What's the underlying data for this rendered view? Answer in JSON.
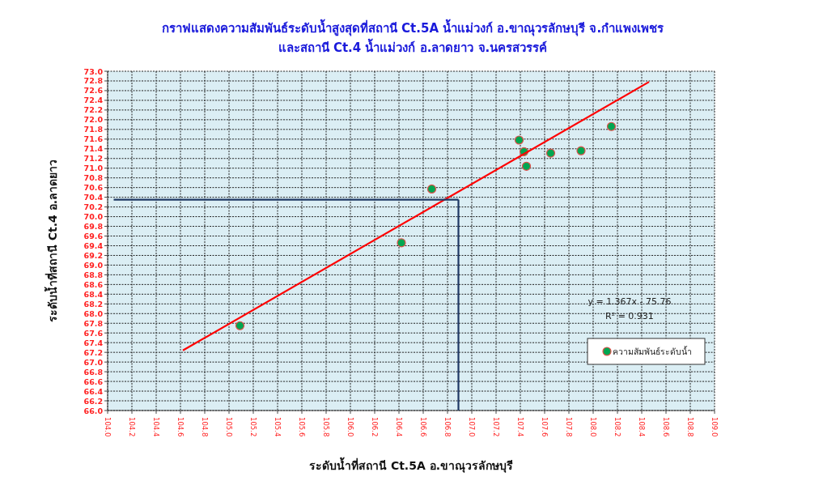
{
  "chart_data": {
    "type": "scatter",
    "title": "กราฟแสดงความสัมพันธ์ระดับน้ำสูงสุดที่สถานี Ct.5A น้ำแม่วงก์ อ.ขาณุวรลักษบุรี จ.กำแพงเพชร\nและสถานี Ct.4 น้ำแม่วงก์ อ.ลาดยาว จ.นครสวรรค์",
    "xlabel": "ระดับน้ำที่สถานี Ct.5A อ.ขาณุวรลักษบุรี",
    "ylabel": "ระดับน้ำที่สถานี Ct.4 อ.ลาดยาว",
    "xlim": [
      104,
      109
    ],
    "ylim": [
      66,
      73
    ],
    "xticks": [
      {
        "value": 104,
        "label": "104.0"
      },
      {
        "value": 104.2,
        "label": "104.2"
      },
      {
        "value": 104.4,
        "label": "104.4"
      },
      {
        "value": 104.6,
        "label": "104.6"
      },
      {
        "value": 104.8,
        "label": "104.8"
      },
      {
        "value": 105,
        "label": "105.0"
      },
      {
        "value": 105.2,
        "label": "105.2"
      },
      {
        "value": 105.4,
        "label": "105.4"
      },
      {
        "value": 105.6,
        "label": "105.6"
      },
      {
        "value": 105.8,
        "label": "105.8"
      },
      {
        "value": 106,
        "label": "106.0"
      },
      {
        "value": 106.2,
        "label": "106.2"
      },
      {
        "value": 106.4,
        "label": "106.4"
      },
      {
        "value": 106.6,
        "label": "106.6"
      },
      {
        "value": 106.8,
        "label": "106.8"
      },
      {
        "value": 107,
        "label": "107.0"
      },
      {
        "value": 107.2,
        "label": "107.2"
      },
      {
        "value": 107.4,
        "label": "107.4"
      },
      {
        "value": 107.6,
        "label": "107.6"
      },
      {
        "value": 107.8,
        "label": "107.8"
      },
      {
        "value": 108,
        "label": "108.0"
      },
      {
        "value": 108.2,
        "label": "108.2"
      },
      {
        "value": 108.4,
        "label": "108.4"
      },
      {
        "value": 108.6,
        "label": "108.6"
      },
      {
        "value": 108.8,
        "label": "108.8"
      },
      {
        "value": 109,
        "label": "109.0"
      }
    ],
    "yticks": [
      {
        "value": 66,
        "label": "66.0"
      },
      {
        "value": 66.2,
        "label": "66.2"
      },
      {
        "value": 66.4,
        "label": "66.4"
      },
      {
        "value": 66.6,
        "label": "66.6"
      },
      {
        "value": 66.8,
        "label": "66.8"
      },
      {
        "value": 67,
        "label": "67.0"
      },
      {
        "value": 67.2,
        "label": "67.2"
      },
      {
        "value": 67.4,
        "label": "67.4"
      },
      {
        "value": 67.6,
        "label": "67.6"
      },
      {
        "value": 67.8,
        "label": "67.8"
      },
      {
        "value": 68,
        "label": "68.0"
      },
      {
        "value": 68.2,
        "label": "68.2"
      },
      {
        "value": 68.4,
        "label": "68.4"
      },
      {
        "value": 68.6,
        "label": "68.6"
      },
      {
        "value": 68.8,
        "label": "68.8"
      },
      {
        "value": 69,
        "label": "69.0"
      },
      {
        "value": 69.2,
        "label": "69.2"
      },
      {
        "value": 69.4,
        "label": "69.4"
      },
      {
        "value": 69.6,
        "label": "69.6"
      },
      {
        "value": 69.8,
        "label": "69.8"
      },
      {
        "value": 70,
        "label": "70.0"
      },
      {
        "value": 70.2,
        "label": "70.2"
      },
      {
        "value": 70.4,
        "label": "70.4"
      },
      {
        "value": 70.6,
        "label": "70.6"
      },
      {
        "value": 70.8,
        "label": "70.8"
      },
      {
        "value": 71,
        "label": "71.0"
      },
      {
        "value": 71.2,
        "label": "71.2"
      },
      {
        "value": 71.4,
        "label": "71.4"
      },
      {
        "value": 71.6,
        "label": "71.6"
      },
      {
        "value": 71.8,
        "label": "71.8"
      },
      {
        "value": 72,
        "label": "72.0"
      },
      {
        "value": 72.2,
        "label": "72.2"
      },
      {
        "value": 72.4,
        "label": "72.4"
      },
      {
        "value": 72.6,
        "label": "72.6"
      },
      {
        "value": 72.8,
        "label": "72.8"
      },
      {
        "value": 73,
        "label": "73.0"
      }
    ],
    "grid": true,
    "legend": "bottom right",
    "annotations": [
      "y = 1.367x - 75.76",
      "R² = 0.931"
    ],
    "series": [
      {
        "name": "ความสัมพันธ์ระดับน้ำ",
        "color": "#00a651",
        "marker": "circle",
        "x": [
          105.09,
          106.42,
          106.67,
          107.39,
          107.43,
          107.45,
          107.65,
          107.9,
          108.15
        ],
        "values": [
          67.75,
          69.46,
          70.57,
          71.58,
          71.34,
          71.04,
          71.31,
          71.36,
          71.86
        ]
      },
      {
        "type": "line",
        "color": "#ff0000",
        "x": [
          104.62,
          108.46
        ],
        "values": [
          67.24,
          72.78
        ]
      },
      {
        "type": "line",
        "color": "#1f3864",
        "x": [
          106.89,
          106.89
        ],
        "values": [
          66.0,
          70.35
        ]
      },
      {
        "type": "line",
        "color": "#1f3864",
        "x": [
          106.89,
          104.05
        ],
        "values": [
          70.35,
          70.35
        ]
      }
    ]
  }
}
